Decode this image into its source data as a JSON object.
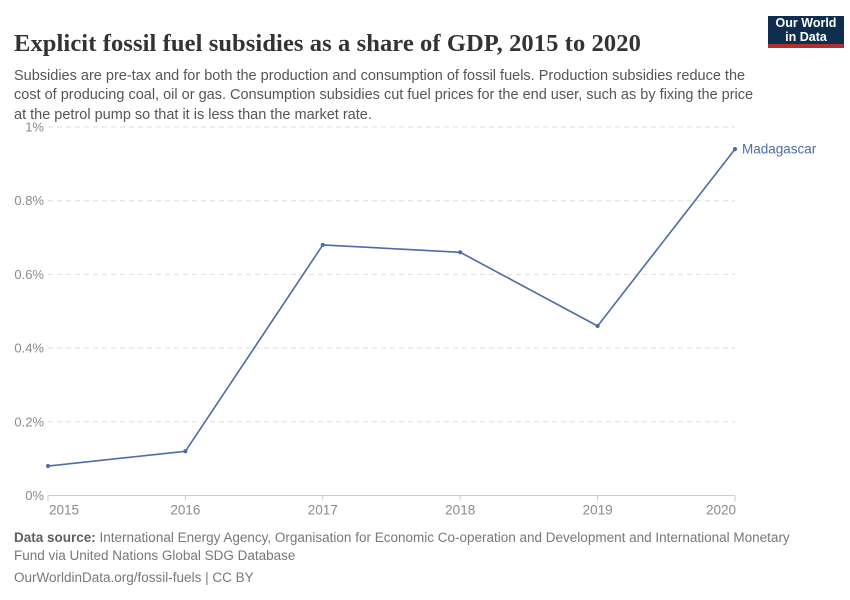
{
  "header": {
    "title": "Explicit fossil fuel subsidies as a share of GDP, 2015 to 2020",
    "logo": {
      "line1": "Our World",
      "line2": "in Data",
      "bg_color": "#0f2e4f",
      "accent_color": "#b0302c"
    }
  },
  "subtitle": "Subsidies are pre-tax and for both the production and consumption of fossil fuels. Production subsidies reduce the cost of producing coal, oil or gas. Consumption subsidies cut fuel prices for the end user, such as by fixing the price at the petrol pump so that it is less than the market rate.",
  "chart_data": {
    "type": "line",
    "title": "Explicit fossil fuel subsidies as a share of GDP, 2015 to 2020",
    "x": [
      2015,
      2016,
      2017,
      2018,
      2019,
      2020
    ],
    "x_tick_labels": [
      "2015",
      "2016",
      "2017",
      "2018",
      "2019",
      "2020"
    ],
    "series": [
      {
        "name": "Madagascar",
        "values": [
          0.08,
          0.12,
          0.68,
          0.66,
          0.46,
          0.94
        ],
        "color": "#4c6da5"
      }
    ],
    "xlabel": "",
    "ylabel": "",
    "ylim": [
      0,
      1
    ],
    "yticks": [
      0,
      0.2,
      0.4,
      0.6,
      0.8,
      1
    ],
    "ytick_labels": [
      "0%",
      "0.2%",
      "0.4%",
      "0.6%",
      "0.8%",
      "1%"
    ],
    "grid": "horizontal-dashed",
    "grid_color": "#dddddd",
    "axis_text_color": "#8a8a8a",
    "axis_line_color": "#cccccc",
    "legend_position": "end-of-line-label",
    "end_label": "Madagascar"
  },
  "footer": {
    "source_label": "Data source:",
    "source_text": " International Energy Agency, Organisation for Economic Co-operation and Development and International Monetary Fund via United Nations Global SDG Database",
    "license": "OurWorldinData.org/fossil-fuels | CC BY"
  }
}
